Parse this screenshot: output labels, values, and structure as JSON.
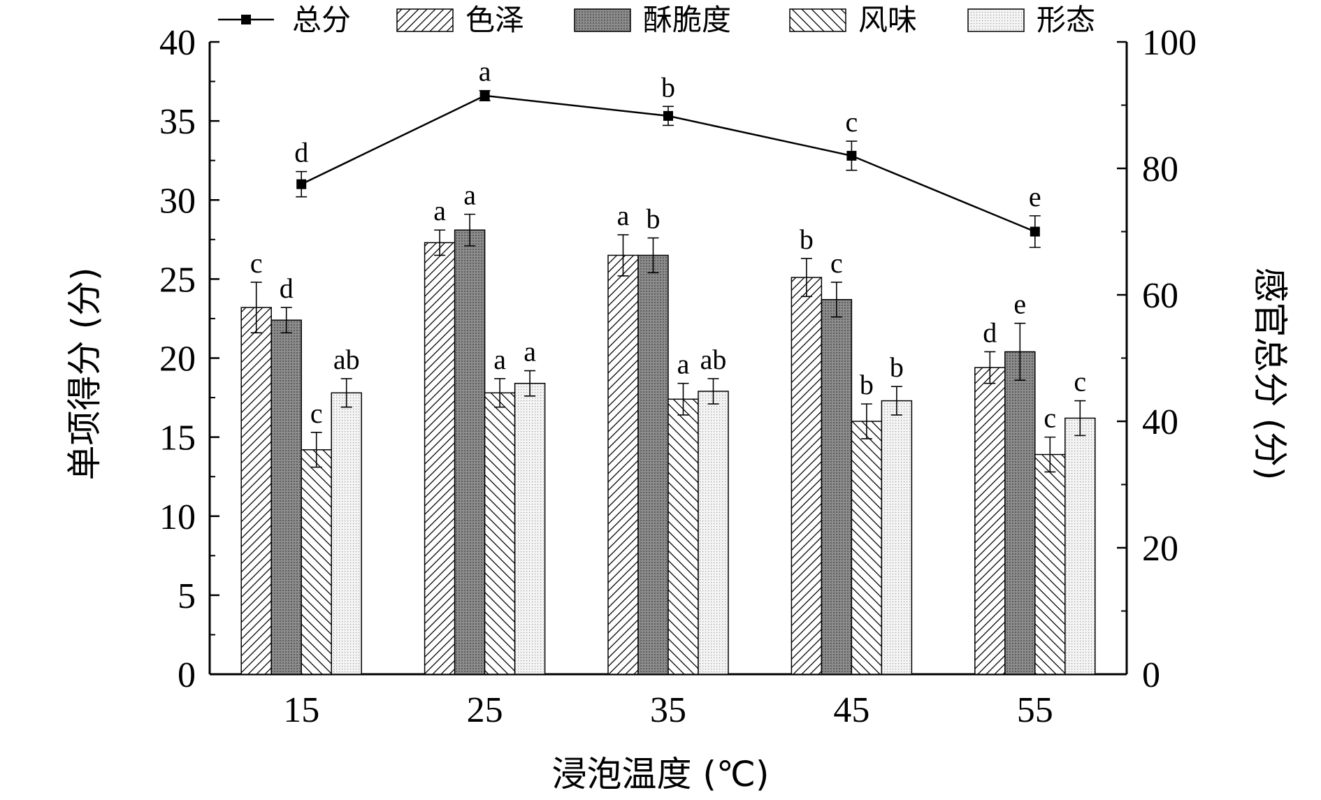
{
  "chart_data": {
    "type": "bar",
    "categories": [
      "15",
      "25",
      "35",
      "45",
      "55"
    ],
    "xlabel": "浸泡温度 (℃)",
    "ylabel": "单项得分 (分)",
    "y2label": "感官总分 (分)",
    "ylim": [
      0,
      40
    ],
    "y2lim": [
      0,
      100
    ],
    "yticks": [
      "0",
      "5",
      "10",
      "15",
      "20",
      "25",
      "30",
      "35",
      "40"
    ],
    "y2ticks": [
      "0",
      "20",
      "40",
      "60",
      "80",
      "100"
    ],
    "grid": false,
    "legend_position": "top",
    "series": [
      {
        "name": "色泽",
        "kind": "bar",
        "pattern": "diag-right",
        "values": [
          23.2,
          27.3,
          26.5,
          25.1,
          19.4
        ],
        "errors": [
          1.6,
          0.8,
          1.3,
          1.2,
          1.0
        ],
        "labels": [
          "c",
          "a",
          "a",
          "b",
          "d"
        ]
      },
      {
        "name": "酥脆度",
        "kind": "bar",
        "pattern": "dense-gray",
        "values": [
          22.4,
          28.1,
          26.5,
          23.7,
          20.4
        ],
        "errors": [
          0.8,
          1.0,
          1.1,
          1.1,
          1.8
        ],
        "labels": [
          "d",
          "a",
          "b",
          "c",
          "e"
        ]
      },
      {
        "name": "风味",
        "kind": "bar",
        "pattern": "diag-left",
        "values": [
          14.2,
          17.8,
          17.4,
          16.0,
          13.9
        ],
        "errors": [
          1.1,
          0.9,
          1.0,
          1.1,
          1.1
        ],
        "labels": [
          "c",
          "a",
          "a",
          "b",
          "c"
        ]
      },
      {
        "name": "形态",
        "kind": "bar",
        "pattern": "dots",
        "values": [
          17.8,
          18.4,
          17.9,
          17.3,
          16.2
        ],
        "errors": [
          0.9,
          0.8,
          0.8,
          0.9,
          1.1
        ],
        "labels": [
          "ab",
          "a",
          "ab",
          "b",
          "c"
        ]
      },
      {
        "name": "总分",
        "kind": "line",
        "axis": "right",
        "values": [
          77.5,
          91.5,
          88.3,
          82.0,
          70.0
        ],
        "errors": [
          2.0,
          0.8,
          1.5,
          2.3,
          2.5
        ],
        "labels": [
          "d",
          "a",
          "b",
          "c",
          "e"
        ]
      }
    ]
  },
  "colors": {
    "axis": "#000000",
    "line": "#000000",
    "dense_fill": "#8c8c8c",
    "dot_fill": "#e0e0e0"
  }
}
